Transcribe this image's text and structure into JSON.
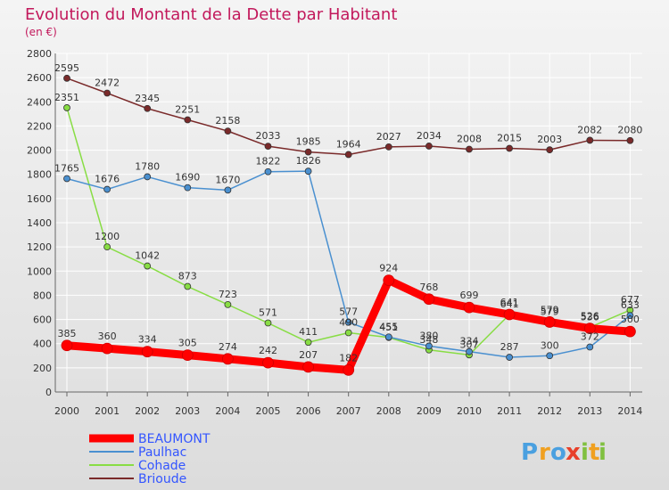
{
  "chart_data": {
    "type": "line",
    "title": "Evolution du Montant de la Dette par Habitant",
    "subtitle": "(en €)",
    "xlabel": "",
    "ylabel": "",
    "x": [
      "2000",
      "2001",
      "2002",
      "2003",
      "2004",
      "2005",
      "2006",
      "2007",
      "2008",
      "2009",
      "2010",
      "2011",
      "2012",
      "2013",
      "2014"
    ],
    "ylim": [
      0,
      2800
    ],
    "yticks": [
      "0",
      "200",
      "400",
      "600",
      "800",
      "1000",
      "1200",
      "1400",
      "1600",
      "1800",
      "2000",
      "2200",
      "2400",
      "2600",
      "2800"
    ],
    "grid": true,
    "legend_position": "bottom-left",
    "series": [
      {
        "name": "BEAUMONT",
        "color": "#ff0000",
        "values": [
          385,
          360,
          334,
          305,
          274,
          242,
          207,
          182,
          924,
          768,
          699,
          641,
          579,
          526,
          500
        ]
      },
      {
        "name": "Paulhac",
        "color": "#4a90d0",
        "values": [
          1765,
          1676,
          1780,
          1690,
          1670,
          1822,
          1826,
          577,
          455,
          380,
          334,
          287,
          300,
          372,
          633
        ]
      },
      {
        "name": "Cohade",
        "color": "#88dd44",
        "values": [
          2351,
          1200,
          1042,
          873,
          723,
          571,
          411,
          490,
          451,
          348,
          307,
          641,
          579,
          536,
          677
        ]
      },
      {
        "name": "Brioude",
        "color": "#7a2a2a",
        "values": [
          2595,
          2472,
          2345,
          2251,
          2158,
          2033,
          1985,
          1964,
          2027,
          2034,
          2008,
          2015,
          2003,
          2082,
          2080
        ]
      }
    ]
  },
  "logo": {
    "letters": [
      "P",
      "r",
      "o",
      "x",
      "i",
      "t",
      "i"
    ]
  }
}
